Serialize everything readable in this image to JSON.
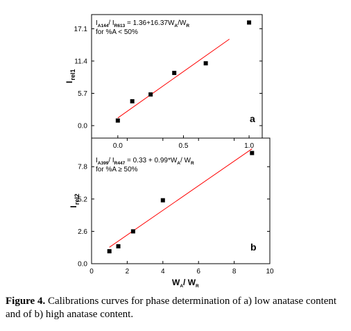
{
  "chart_data": [
    {
      "type": "scatter",
      "panel_label": "a",
      "ylabel": "I",
      "ylabel_sub": "rel1",
      "xlim": [
        -0.2,
        1.1
      ],
      "ylim": [
        -2.2,
        19.6
      ],
      "x_ticks": [
        0.0,
        0.5,
        1.0
      ],
      "x_tick_labels": [
        "0.0",
        "0.5",
        "1.0"
      ],
      "y_ticks": [
        0.0,
        5.7,
        11.4,
        17.1
      ],
      "y_tick_labels": [
        "0.0",
        "5.7",
        "11.4",
        "17.1"
      ],
      "points": [
        {
          "x": 0.0,
          "y": 0.9
        },
        {
          "x": 0.11,
          "y": 4.3
        },
        {
          "x": 0.25,
          "y": 5.5
        },
        {
          "x": 0.43,
          "y": 9.3
        },
        {
          "x": 0.67,
          "y": 11.0
        },
        {
          "x": 1.0,
          "y": 18.2
        }
      ],
      "fit": {
        "x": [
          0.0,
          0.85
        ],
        "y": [
          1.36,
          15.27
        ],
        "color": "#ff0000"
      },
      "annotation": {
        "line1": {
          "a": "I",
          "a_sub": "A144",
          "b": "/ I",
          "b_sub": "R613",
          "c": " = 1.36+16.37W",
          "c_sub": "A",
          "d": "/W",
          "d_sub": "R"
        },
        "line2": "for %A < 50%"
      }
    },
    {
      "type": "scatter",
      "panel_label": "b",
      "ylabel": "I",
      "ylabel_sub": "rel2",
      "xlabel": {
        "a": "W",
        "a_sub": "A",
        "b": "/ W",
        "b_sub": "R"
      },
      "xlim": [
        0,
        10
      ],
      "ylim": [
        0,
        10.1
      ],
      "x_ticks": [
        0,
        2,
        4,
        6,
        8,
        10
      ],
      "x_tick_labels": [
        "0",
        "2",
        "4",
        "6",
        "8",
        "10"
      ],
      "y_ticks": [
        0.0,
        2.6,
        5.2,
        7.8
      ],
      "y_tick_labels": [
        "0.0",
        "2.6",
        "5.2",
        "7.8"
      ],
      "points": [
        {
          "x": 1.0,
          "y": 1.0
        },
        {
          "x": 1.5,
          "y": 1.4
        },
        {
          "x": 2.33,
          "y": 2.6
        },
        {
          "x": 4.0,
          "y": 5.1
        },
        {
          "x": 9.0,
          "y": 8.9
        }
      ],
      "fit": {
        "x": [
          1.0,
          9.0
        ],
        "y": [
          1.32,
          9.24
        ],
        "color": "#ff0000"
      },
      "annotation": {
        "line1": {
          "a": "I",
          "a_sub": "A399",
          "b": "/ I",
          "b_sub": "R447",
          "c": " = 0.33 + 0.99*W",
          "c_sub": "A",
          "d": "/ W",
          "d_sub": "R"
        },
        "line2": "for %A ≥ 50%"
      }
    }
  ],
  "caption": {
    "bold": "Figure 4.",
    "text": " Calibrations curves for phase determination of a) low anatase content and of b) high anatase content."
  }
}
